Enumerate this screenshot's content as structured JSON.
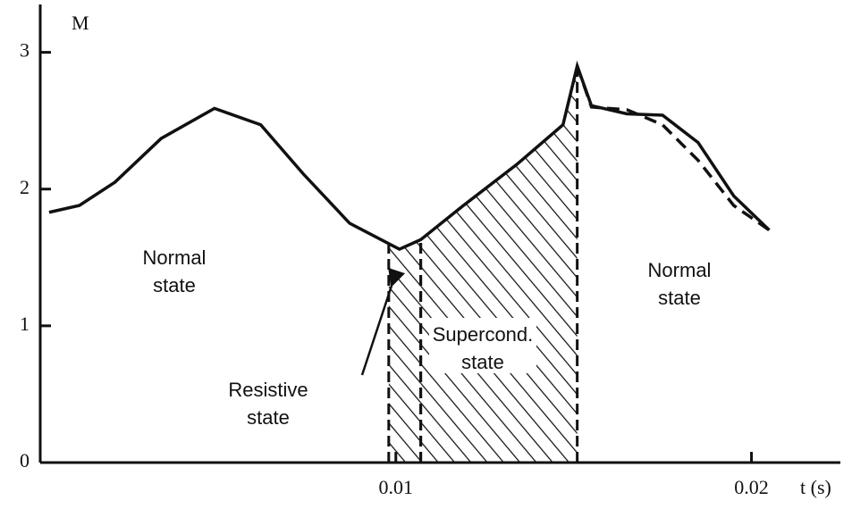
{
  "chart_data": {
    "type": "line",
    "y_label": "M",
    "x_label": "t (s)",
    "x": [
      0.00025,
      0.0011,
      0.0021,
      0.0034,
      0.0049,
      0.0062,
      0.0074,
      0.0087,
      0.0101,
      0.0107,
      0.0119,
      0.0134,
      0.0147,
      0.0151,
      0.0155,
      0.0165,
      0.0175,
      0.0185,
      0.0195,
      0.0205
    ],
    "series": [
      {
        "name": null,
        "color": "#111111",
        "dashed": false,
        "values": [
          1.83,
          1.88,
          2.05,
          2.37,
          2.59,
          2.47,
          2.11,
          1.75,
          1.56,
          1.63,
          1.88,
          2.18,
          2.47,
          2.9,
          2.61,
          2.55,
          2.54,
          2.34,
          1.95,
          1.7
        ]
      },
      {
        "name": null,
        "color": "#111111",
        "dashed": true,
        "values": [
          null,
          null,
          null,
          null,
          null,
          null,
          null,
          null,
          null,
          null,
          null,
          null,
          null,
          2.9,
          2.6,
          2.58,
          2.47,
          2.21,
          1.88,
          1.7
        ]
      }
    ],
    "regions": [
      {
        "x0": 0.0098,
        "x1": 0.0107
      },
      {
        "x0": 0.0107,
        "x1": 0.0151
      }
    ],
    "annotations": [
      {
        "lines": [
          "Normal",
          "state"
        ]
      },
      {
        "lines": [
          "Resistive",
          "state"
        ]
      },
      {
        "lines": [
          "Supercond.",
          "state"
        ]
      },
      {
        "lines": [
          "Normal",
          "state"
        ]
      }
    ],
    "xlim": [
      0,
      0.0225
    ],
    "ylim": [
      0,
      3.35
    ],
    "xticks": [
      0.01,
      0.02
    ],
    "yticks": [
      0,
      1,
      2,
      3
    ]
  }
}
